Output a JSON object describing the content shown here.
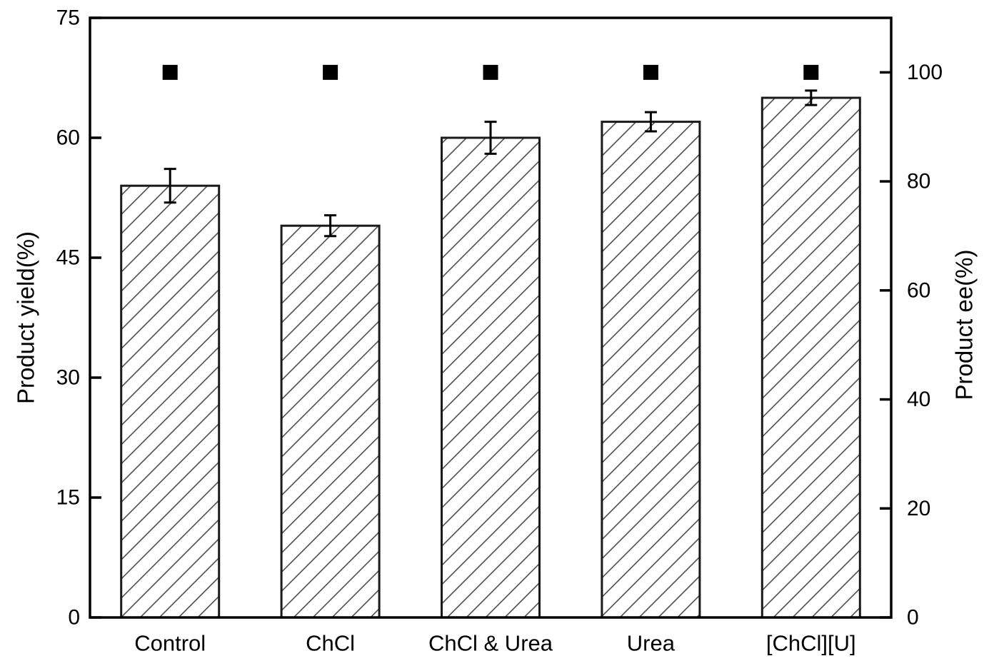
{
  "chart_data": {
    "type": "bar",
    "title": "",
    "categories": [
      "Control",
      "ChCl",
      "ChCl & Urea",
      "Urea",
      "[ChCl][U]"
    ],
    "series": [
      {
        "name": "Product yield",
        "axis": "left",
        "style": "hatched-bar",
        "values": [
          54,
          49,
          60,
          62,
          65
        ],
        "errors": [
          2.1,
          1.3,
          2.0,
          1.2,
          0.9
        ]
      },
      {
        "name": "Product ee",
        "axis": "right",
        "style": "square-marker",
        "values": [
          100,
          100,
          100,
          100,
          100
        ]
      }
    ],
    "left_axis": {
      "label": "Product yield(%)",
      "ticks": [
        0,
        15,
        30,
        45,
        60,
        75
      ],
      "lim": [
        0,
        75
      ]
    },
    "right_axis": {
      "label": "Product ee(%)",
      "ticks": [
        0,
        20,
        40,
        60,
        80,
        100
      ],
      "lim": [
        0,
        110
      ]
    },
    "layout_hints": {
      "grid": "off",
      "legend": "none",
      "bar_fill": "diagonal-hatch",
      "bar_edge_color": "#1a1a1a",
      "hatch_color": "#3f3f3f",
      "marker_color": "#000000",
      "frame": "full-box",
      "tick_direction": "in"
    }
  }
}
